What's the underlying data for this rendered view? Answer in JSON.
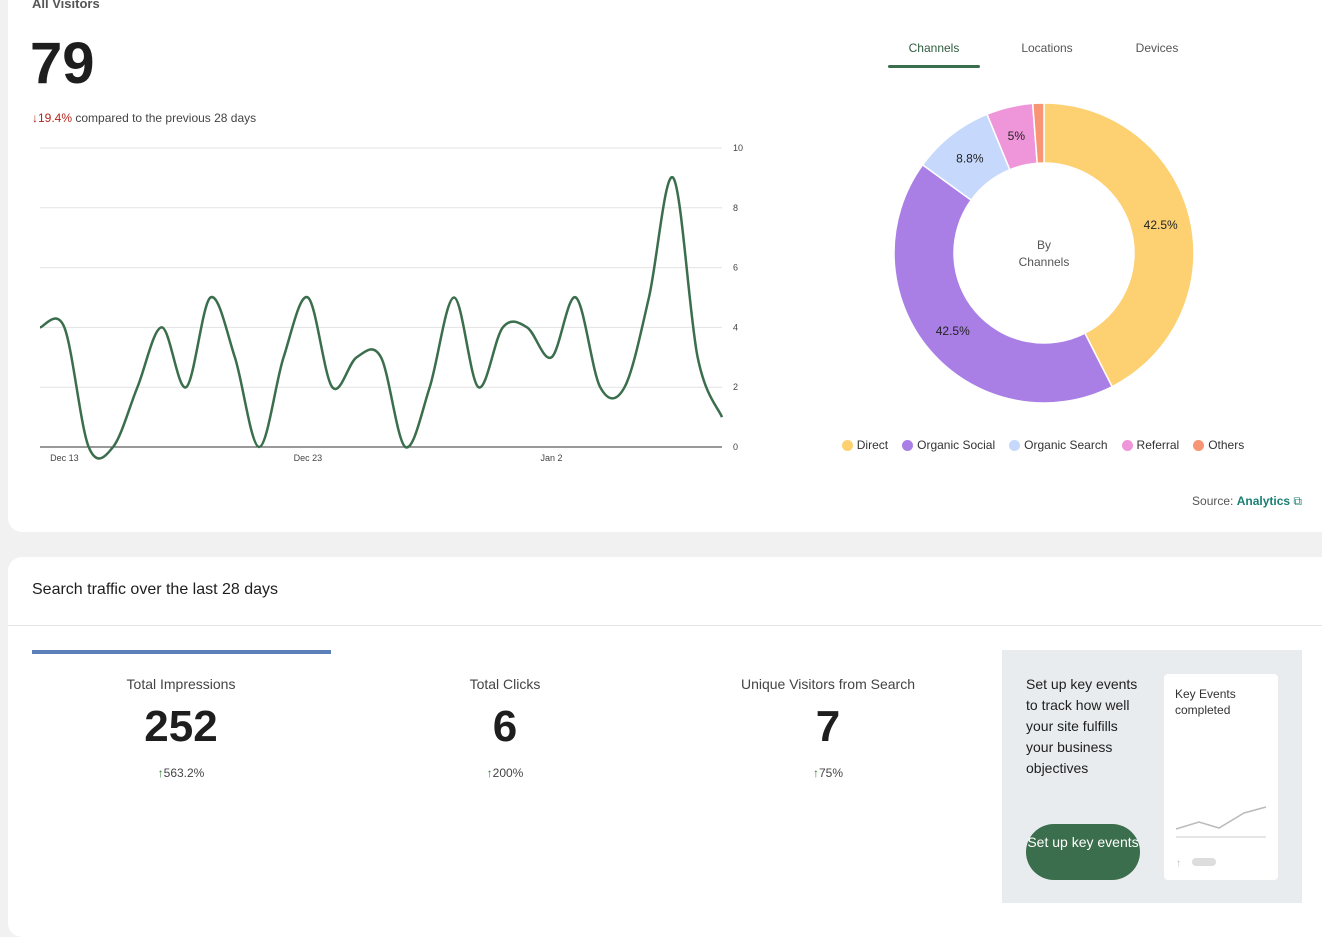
{
  "header": {
    "title": "All Visitors",
    "total": "79",
    "delta": "19.4%",
    "delta_text": "compared to the previous 28 days"
  },
  "tabs": [
    "Channels",
    "Locations",
    "Devices"
  ],
  "chart_data": [
    {
      "type": "line",
      "categories": [
        null,
        "Dec 13",
        null,
        null,
        null,
        null,
        null,
        null,
        null,
        null,
        null,
        "Dec 23",
        null,
        null,
        null,
        null,
        null,
        null,
        null,
        null,
        null,
        "Jan 2",
        null,
        null,
        null,
        null,
        null,
        null,
        null
      ],
      "values": [
        4,
        4,
        0,
        0,
        2,
        4,
        2,
        5,
        3,
        0,
        3,
        5,
        2,
        3,
        3,
        0,
        2,
        5,
        2,
        4,
        4,
        3,
        5,
        2,
        2,
        5,
        9,
        3,
        1
      ],
      "color": "#3b6e4c",
      "ylim": [
        0,
        10
      ],
      "yticks": [
        0,
        2,
        4,
        6,
        8,
        10
      ],
      "grid": true
    },
    {
      "type": "pie",
      "center_text": [
        "By",
        "Channels"
      ],
      "categories": [
        "Direct",
        "Organic Social",
        "Organic Search",
        "Referral",
        "Others"
      ],
      "values": [
        42.5,
        42.5,
        8.8,
        5,
        1.2
      ],
      "value_labels": [
        "42.5%",
        "42.5%",
        "8.8%",
        "5%",
        null
      ],
      "colors": [
        "#fdd072",
        "#a97fe6",
        "#c6d8fb",
        "#ef95d9",
        "#f79574"
      ]
    }
  ],
  "source": {
    "label": "Source:",
    "link": "Analytics"
  },
  "search": {
    "title": "Search traffic over the last 28 days",
    "metrics": [
      {
        "label": "Total Impressions",
        "value": "252",
        "delta": "563.2%"
      },
      {
        "label": "Total Clicks",
        "value": "6",
        "delta": "200%"
      },
      {
        "label": "Unique Visitors from Search",
        "value": "7",
        "delta": "75%"
      }
    ],
    "promo": {
      "text": "Set up key events to track how well your site fulfills your business objectives",
      "button": "Set up key events",
      "card_title": "Key Events completed"
    }
  }
}
